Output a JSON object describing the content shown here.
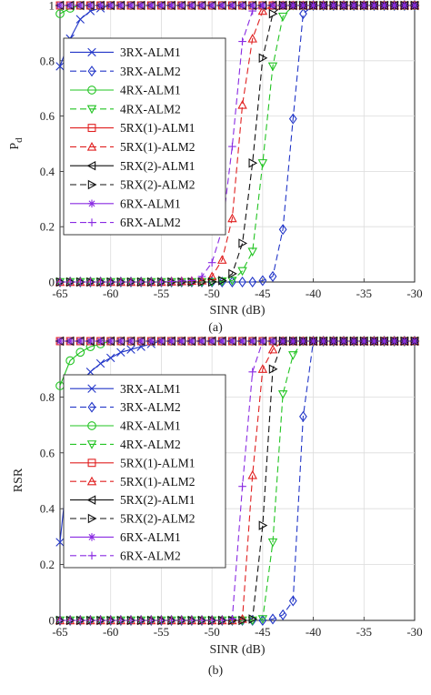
{
  "chart_data": [
    {
      "type": "line",
      "panel_label": "(a)",
      "xlabel": "SINR (dB)",
      "ylabel": "P",
      "ylabel_sub": "d",
      "xlim": [
        -65,
        -30
      ],
      "ylim": [
        0,
        1
      ],
      "xticks": [
        "-65",
        "-60",
        "-55",
        "-50",
        "-45",
        "-40",
        "-35",
        "-30"
      ],
      "yticks": [
        "0",
        "0.2",
        "0.4",
        "0.6",
        "0.8",
        "1"
      ],
      "grid": true,
      "legend_position": "top-left",
      "series": [
        {
          "name": "3RX-ALM1",
          "color": "#2236c8",
          "dash": "solid",
          "marker": "x",
          "x": [
            -65,
            -64,
            -63,
            -62,
            -61,
            -60,
            -58,
            -55,
            -50,
            -45,
            -40,
            -35,
            -30
          ],
          "y": [
            0.78,
            0.88,
            0.95,
            0.98,
            0.99,
            1,
            1,
            1,
            1,
            1,
            1,
            1,
            1
          ]
        },
        {
          "name": "3RX-ALM2",
          "color": "#2236c8",
          "dash": "dashed",
          "marker": "diamond",
          "x": [
            -65,
            -60,
            -55,
            -50,
            -46,
            -45,
            -44,
            -43,
            -42,
            -41,
            -40,
            -35,
            -30
          ],
          "y": [
            0,
            0,
            0,
            0,
            0,
            0.005,
            0.02,
            0.19,
            0.59,
            0.97,
            1,
            1,
            1
          ]
        },
        {
          "name": "4RX-ALM1",
          "color": "#22c422",
          "dash": "solid",
          "marker": "circle",
          "x": [
            -65,
            -64,
            -63,
            -62,
            -60,
            -55,
            -50,
            -45,
            -40,
            -35,
            -30
          ],
          "y": [
            0.97,
            0.99,
            1,
            1,
            1,
            1,
            1,
            1,
            1,
            1,
            1
          ]
        },
        {
          "name": "4RX-ALM2",
          "color": "#22c422",
          "dash": "dashed",
          "marker": "triangle-down",
          "x": [
            -65,
            -60,
            -55,
            -50,
            -48,
            -47,
            -46,
            -45,
            -44,
            -43,
            -42,
            -40,
            -35,
            -30
          ],
          "y": [
            0,
            0,
            0,
            0,
            0.005,
            0.04,
            0.11,
            0.43,
            0.78,
            0.96,
            1,
            1,
            1,
            1
          ]
        },
        {
          "name": "5RX(1)-ALM1",
          "color": "#e02020",
          "dash": "solid",
          "marker": "square",
          "x": [
            -65,
            -60,
            -55,
            -50,
            -45,
            -40,
            -35,
            -30
          ],
          "y": [
            1,
            1,
            1,
            1,
            1,
            1,
            1,
            1
          ]
        },
        {
          "name": "5RX(1)-ALM2",
          "color": "#e02020",
          "dash": "dashed",
          "marker": "triangle-up",
          "x": [
            -65,
            -60,
            -55,
            -51,
            -50,
            -49,
            -48,
            -47,
            -46,
            -45,
            -44,
            -40,
            -35,
            -30
          ],
          "y": [
            0,
            0,
            0,
            0.005,
            0.02,
            0.08,
            0.23,
            0.64,
            0.88,
            0.98,
            1,
            1,
            1,
            1
          ]
        },
        {
          "name": "5RX(2)-ALM1",
          "color": "#111111",
          "dash": "solid",
          "marker": "triangle-left",
          "x": [
            -65,
            -60,
            -55,
            -50,
            -45,
            -40,
            -35,
            -30
          ],
          "y": [
            1,
            1,
            1,
            1,
            1,
            1,
            1,
            1
          ]
        },
        {
          "name": "5RX(2)-ALM2",
          "color": "#111111",
          "dash": "dashed",
          "marker": "triangle-right",
          "x": [
            -65,
            -60,
            -55,
            -50,
            -49,
            -48,
            -47,
            -46,
            -45,
            -44,
            -43,
            -40,
            -35,
            -30
          ],
          "y": [
            0,
            0,
            0,
            0,
            0.005,
            0.03,
            0.14,
            0.43,
            0.81,
            0.97,
            1,
            1,
            1,
            1
          ]
        },
        {
          "name": "6RX-ALM1",
          "color": "#8a2be2",
          "dash": "solid",
          "marker": "asterisk",
          "x": [
            -65,
            -60,
            -55,
            -50,
            -45,
            -40,
            -35,
            -30
          ],
          "y": [
            1,
            1,
            1,
            1,
            1,
            1,
            1,
            1
          ]
        },
        {
          "name": "6RX-ALM2",
          "color": "#8a2be2",
          "dash": "dashed",
          "marker": "plus",
          "x": [
            -65,
            -60,
            -55,
            -52,
            -51,
            -50,
            -49,
            -48,
            -47,
            -46,
            -45,
            -40,
            -35,
            -30
          ],
          "y": [
            0,
            0,
            0,
            0.005,
            0.02,
            0.07,
            0.19,
            0.49,
            0.87,
            0.98,
            1,
            1,
            1,
            1
          ]
        }
      ]
    },
    {
      "type": "line",
      "panel_label": "(b)",
      "xlabel": "SINR (dB)",
      "ylabel": "RSR",
      "xlim": [
        -65,
        -30
      ],
      "ylim": [
        0,
        1
      ],
      "xticks": [
        "-65",
        "-60",
        "-55",
        "-50",
        "-45",
        "-40",
        "-35",
        "-30"
      ],
      "yticks": [
        "0",
        "0.2",
        "0.4",
        "0.6",
        "0.8"
      ],
      "grid": true,
      "legend_position": "left",
      "series": [
        {
          "name": "3RX-ALM1",
          "color": "#2236c8",
          "dash": "solid",
          "marker": "x",
          "x": [
            -65,
            -64,
            -63,
            -62,
            -61,
            -60,
            -59,
            -58,
            -57,
            -55,
            -50,
            -45,
            -40,
            -35,
            -30
          ],
          "y": [
            0.28,
            0.62,
            0.84,
            0.89,
            0.92,
            0.94,
            0.96,
            0.97,
            0.98,
            1,
            1,
            1,
            1,
            1,
            1
          ]
        },
        {
          "name": "3RX-ALM2",
          "color": "#2236c8",
          "dash": "dashed",
          "marker": "diamond",
          "x": [
            -65,
            -60,
            -55,
            -50,
            -45,
            -44,
            -43,
            -42,
            -41,
            -40,
            -35,
            -30
          ],
          "y": [
            0,
            0,
            0,
            0,
            0,
            0.005,
            0.02,
            0.07,
            0.73,
            1,
            1,
            1
          ]
        },
        {
          "name": "4RX-ALM1",
          "color": "#22c422",
          "dash": "solid",
          "marker": "circle",
          "x": [
            -65,
            -64,
            -63,
            -62,
            -61,
            -60,
            -58,
            -55,
            -50,
            -45,
            -40,
            -35,
            -30
          ],
          "y": [
            0.84,
            0.93,
            0.96,
            0.98,
            0.99,
            1,
            1,
            1,
            1,
            1,
            1,
            1,
            1
          ]
        },
        {
          "name": "4RX-ALM2",
          "color": "#22c422",
          "dash": "dashed",
          "marker": "triangle-down",
          "x": [
            -65,
            -60,
            -55,
            -50,
            -46,
            -45,
            -44,
            -43,
            -42,
            -41,
            -40,
            -35,
            -30
          ],
          "y": [
            0,
            0,
            0,
            0,
            0,
            0.005,
            0.28,
            0.81,
            0.95,
            1,
            1,
            1,
            1
          ]
        },
        {
          "name": "5RX(1)-ALM1",
          "color": "#e02020",
          "dash": "solid",
          "marker": "square",
          "x": [
            -65,
            -60,
            -55,
            -50,
            -45,
            -40,
            -35,
            -30
          ],
          "y": [
            1,
            1,
            1,
            1,
            1,
            1,
            1,
            1
          ]
        },
        {
          "name": "5RX(1)-ALM2",
          "color": "#e02020",
          "dash": "dashed",
          "marker": "triangle-up",
          "x": [
            -65,
            -60,
            -55,
            -50,
            -48,
            -47,
            -46,
            -45,
            -44,
            -43,
            -40,
            -35,
            -30
          ],
          "y": [
            0,
            0,
            0,
            0,
            0,
            0.005,
            0.52,
            0.9,
            0.97,
            1,
            1,
            1,
            1
          ]
        },
        {
          "name": "5RX(2)-ALM1",
          "color": "#111111",
          "dash": "solid",
          "marker": "triangle-left",
          "x": [
            -65,
            -60,
            -55,
            -50,
            -45,
            -40,
            -35,
            -30
          ],
          "y": [
            1,
            1,
            1,
            1,
            1,
            1,
            1,
            1
          ]
        },
        {
          "name": "5RX(2)-ALM2",
          "color": "#111111",
          "dash": "dashed",
          "marker": "triangle-right",
          "x": [
            -65,
            -60,
            -55,
            -50,
            -47,
            -46,
            -45,
            -44,
            -43,
            -40,
            -35,
            -30
          ],
          "y": [
            0,
            0,
            0,
            0,
            0,
            0.005,
            0.34,
            0.9,
            1,
            1,
            1,
            1
          ]
        },
        {
          "name": "6RX-ALM1",
          "color": "#8a2be2",
          "dash": "solid",
          "marker": "asterisk",
          "x": [
            -65,
            -60,
            -55,
            -50,
            -45,
            -40,
            -35,
            -30
          ],
          "y": [
            1,
            1,
            1,
            1,
            1,
            1,
            1,
            1
          ]
        },
        {
          "name": "6RX-ALM2",
          "color": "#8a2be2",
          "dash": "dashed",
          "marker": "plus",
          "x": [
            -65,
            -60,
            -55,
            -50,
            -49,
            -48,
            -47,
            -46,
            -45,
            -40,
            -35,
            -30
          ],
          "y": [
            0,
            0,
            0,
            0,
            0,
            0.005,
            0.48,
            0.89,
            1,
            1,
            1,
            1
          ]
        }
      ]
    }
  ]
}
